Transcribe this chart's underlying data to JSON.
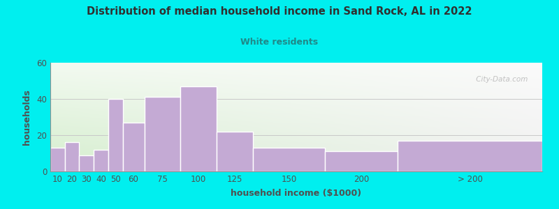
{
  "title": "Distribution of median household income in Sand Rock, AL in 2022",
  "subtitle": "White residents",
  "xlabel": "household income ($1000)",
  "ylabel": "households",
  "background_outer": "#00EFEF",
  "background_inner_left": "#d5eece",
  "background_inner_right": "#f0f0f0",
  "bar_color": "#c4aad4",
  "bar_edge_color": "#ffffff",
  "title_color": "#303030",
  "subtitle_color": "#208888",
  "axis_label_color": "#505050",
  "tick_label_color": "#505050",
  "ylim": [
    0,
    60
  ],
  "yticks": [
    0,
    20,
    40,
    60
  ],
  "bar_labels": [
    "10",
    "20",
    "30",
    "40",
    "50",
    "60",
    "75",
    "100",
    "125",
    "150",
    "200",
    "> 200"
  ],
  "bar_values": [
    13,
    16,
    9,
    12,
    40,
    27,
    41,
    47,
    22,
    13,
    11,
    17
  ],
  "bar_widths": [
    10,
    10,
    10,
    10,
    10,
    15,
    25,
    25,
    25,
    50,
    50,
    100
  ],
  "bar_lefts": [
    0,
    10,
    20,
    30,
    40,
    50,
    65,
    90,
    115,
    140,
    190,
    240
  ],
  "watermark": " City-Data.com"
}
